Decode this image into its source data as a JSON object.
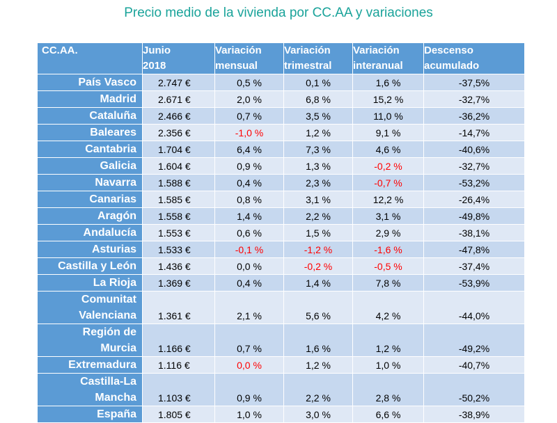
{
  "title": "Precio medio de la vivienda por CC.AA y variaciones",
  "colors": {
    "title": "#1aa39a",
    "header_bg": "#5b9bd5",
    "row_dark": "#c6d8ef",
    "row_light": "#dfe8f5",
    "negative": "#ff0000"
  },
  "chart_data": {
    "type": "table",
    "title": "Precio medio de la vivienda por CC.AA y variaciones",
    "columns": [
      [
        "CC.AA."
      ],
      [
        "Junio",
        "2018"
      ],
      [
        "Variación",
        "mensual"
      ],
      [
        "Variación",
        "trimestral"
      ],
      [
        "Variación",
        "interanual"
      ],
      [
        "Descenso",
        "acumulado"
      ]
    ],
    "rows": [
      {
        "name": [
          "País Vasco"
        ],
        "cells": [
          "2.747 €",
          "0,5 %",
          "0,1 %",
          "1,6 %",
          "-37,5%"
        ]
      },
      {
        "name": [
          "Madrid"
        ],
        "cells": [
          "2.671 €",
          "2,0 %",
          "6,8 %",
          "15,2 %",
          "-32,7%"
        ]
      },
      {
        "name": [
          "Cataluña"
        ],
        "cells": [
          "2.466 €",
          "0,7 %",
          "3,5 %",
          "11,0 %",
          "-36,2%"
        ]
      },
      {
        "name": [
          "Baleares"
        ],
        "cells": [
          "2.356 €",
          "-1,0 %",
          "1,2 %",
          "9,1 %",
          "-14,7%"
        ]
      },
      {
        "name": [
          "Cantabria"
        ],
        "cells": [
          "1.704 €",
          "6,4 %",
          "7,3 %",
          "4,6 %",
          "-40,6%"
        ]
      },
      {
        "name": [
          "Galicia"
        ],
        "cells": [
          "1.604 €",
          "0,9 %",
          "1,3 %",
          "-0,2 %",
          "-32,7%"
        ]
      },
      {
        "name": [
          "Navarra"
        ],
        "cells": [
          "1.588 €",
          "0,4 %",
          "2,3 %",
          "-0,7 %",
          "-53,2%"
        ]
      },
      {
        "name": [
          "Canarias"
        ],
        "cells": [
          "1.585 €",
          "0,8 %",
          "3,1 %",
          "12,2 %",
          "-26,4%"
        ]
      },
      {
        "name": [
          "Aragón"
        ],
        "cells": [
          "1.558 €",
          "1,4 %",
          "2,2 %",
          "3,1 %",
          "-49,8%"
        ]
      },
      {
        "name": [
          "Andalucía"
        ],
        "cells": [
          "1.553 €",
          "0,6 %",
          "1,5 %",
          "2,9 %",
          "-38,1%"
        ]
      },
      {
        "name": [
          "Asturias"
        ],
        "cells": [
          "1.533 €",
          "-0,1 %",
          "-1,2 %",
          "-1,6 %",
          "-47,8%"
        ]
      },
      {
        "name": [
          "Castilla y León"
        ],
        "cells": [
          "1.436 €",
          "0,0 %",
          "-0,2 %",
          "-0,5 %",
          "-37,4%"
        ]
      },
      {
        "name": [
          "La Rioja"
        ],
        "cells": [
          "1.369 €",
          "0,4 %",
          "1,4 %",
          "7,8 %",
          "-53,9%"
        ]
      },
      {
        "name": [
          "Comunitat",
          "Valenciana"
        ],
        "cells": [
          "1.361 €",
          "2,1 %",
          "5,6 %",
          "4,2 %",
          "-44,0%"
        ]
      },
      {
        "name": [
          "Región de",
          "Murcia"
        ],
        "cells": [
          "1.166 €",
          "0,7 %",
          "1,6 %",
          "1,2 %",
          "-49,2%"
        ]
      },
      {
        "name": [
          "Extremadura"
        ],
        "cells": [
          "1.116 €",
          "0,0 %",
          "1,2 %",
          "1,0 %",
          "-40,7%"
        ]
      },
      {
        "name": [
          "Castilla-La",
          "Mancha"
        ],
        "cells": [
          "1.103 €",
          "0,9 %",
          "2,2 %",
          "2,8 %",
          "-50,2%"
        ]
      },
      {
        "name": [
          "España"
        ],
        "cells": [
          "1.805 €",
          "1,0 %",
          "3,0 %",
          "6,6 %",
          "-38,9%"
        ]
      }
    ],
    "negative_cells": [
      [
        3,
        1
      ],
      [
        5,
        3
      ],
      [
        6,
        3
      ],
      [
        10,
        1
      ],
      [
        10,
        2
      ],
      [
        10,
        3
      ],
      [
        11,
        2
      ],
      [
        11,
        3
      ],
      [
        15,
        1
      ]
    ]
  }
}
